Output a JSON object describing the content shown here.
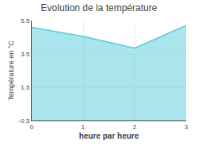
{
  "chart_data": {
    "type": "area",
    "title": "Evolution de la température",
    "xlabel": "heure par heure",
    "ylabel": "Température en °C",
    "x": [
      0,
      1,
      2,
      3
    ],
    "values": [
      5.1,
      4.55,
      3.85,
      5.2
    ],
    "color": "#55ccdd",
    "xlim": [
      0,
      3
    ],
    "ylim": [
      -0.5,
      5.5
    ],
    "xticks": [
      0,
      1,
      2,
      3
    ],
    "yticks": [
      -0.5,
      1.5,
      3.5,
      5.5
    ],
    "grid": true
  }
}
